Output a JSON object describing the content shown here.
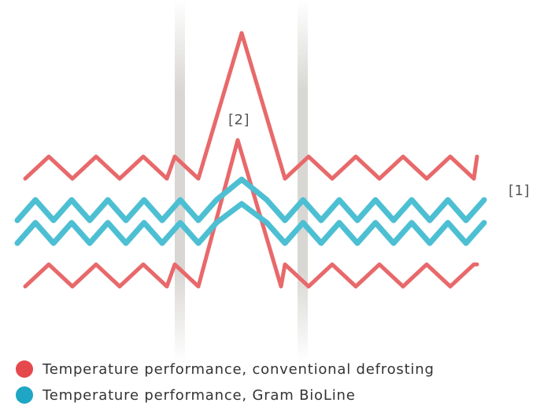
{
  "labels": {
    "marker_1": "[1]",
    "marker_2": "[2]"
  },
  "legend": [
    {
      "text": "Temperature performance, conventional defrosting",
      "color": "#e5484d"
    },
    {
      "text": "Temperature performance, Gram BioLine",
      "color": "#1fa6c4"
    }
  ],
  "colors": {
    "conventional_line": "#e8696b",
    "bioline_line": "#4dbfd3",
    "door_band": "#d9d7d3"
  }
}
